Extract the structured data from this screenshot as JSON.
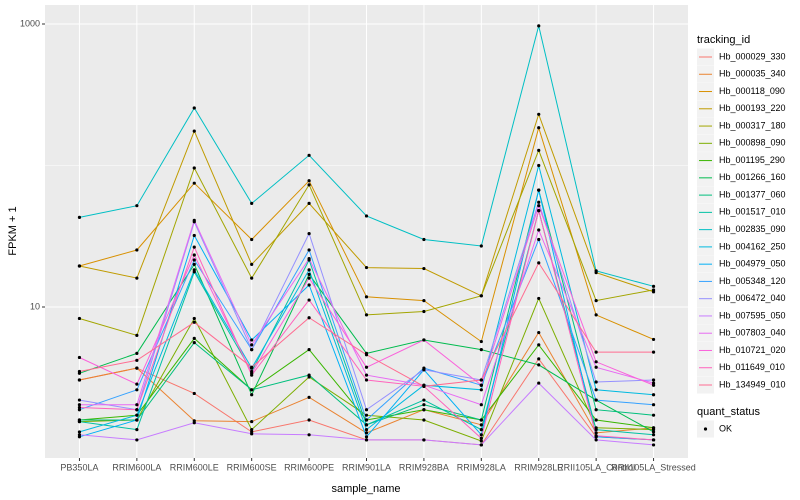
{
  "chart_data": {
    "type": "line",
    "x_label": "sample_name",
    "y_label": "FPKM + 1",
    "categories": [
      "PB350LA",
      "RRIM600LA",
      "RRIM600LE",
      "RRIM600SE",
      "RRIM600PE",
      "RRIM901LA",
      "RRIM928BA",
      "RRIM928LA",
      "RRIM928LE",
      "RRII105LA_Control",
      "RRII105LA_Stressed"
    ],
    "log_y": true,
    "grid": true,
    "ylim": [
      0.857,
      1362
    ],
    "yticks": [
      10,
      1000
    ],
    "legend_title": "tracking_id",
    "legend_position": "right",
    "point_legend": {
      "title": "quant_status",
      "labels": [
        "OK"
      ]
    },
    "series": [
      {
        "name": "Hb_000029_330",
        "color": "#F8766D",
        "values": [
          3.05,
          3.7,
          2.45,
          1.31,
          1.59,
          1.15,
          1.15,
          1.06,
          4.3,
          1.21,
          1.15
        ]
      },
      {
        "name": "Hb_000035_340",
        "color": "#EA8331",
        "values": [
          3.05,
          3.7,
          1.57,
          1.55,
          2.3,
          1.29,
          1.88,
          1.47,
          6.6,
          1.29,
          1.4
        ]
      },
      {
        "name": "Hb_000118_090",
        "color": "#D89000",
        "values": [
          19.5,
          25.3,
          75,
          30,
          78,
          11.8,
          11.1,
          5.7,
          185,
          8.8,
          5.9
        ]
      },
      {
        "name": "Hb_000193_220",
        "color": "#C09B00",
        "values": [
          19.5,
          16,
          175,
          20,
          54,
          19,
          18.7,
          12,
          230,
          17.5,
          12.8
        ]
      },
      {
        "name": "Hb_000317_180",
        "color": "#A3A500",
        "values": [
          8.3,
          6.3,
          96,
          16,
          73,
          8.8,
          9.3,
          12,
          128,
          11.1,
          13.2
        ]
      },
      {
        "name": "Hb_000898_090",
        "color": "#7CAE00",
        "values": [
          1.55,
          1.59,
          8.3,
          1.36,
          3.2,
          1.72,
          1.59,
          1.13,
          11.5,
          1.4,
          1.36
        ]
      },
      {
        "name": "Hb_001195_290",
        "color": "#39B600",
        "values": [
          1.59,
          1.72,
          6,
          2.6,
          5,
          1.59,
          1.88,
          1.59,
          5.4,
          1.59,
          1.4
        ]
      },
      {
        "name": "Hb_001266_160",
        "color": "#00BB4E",
        "values": [
          3.4,
          4.7,
          20,
          2.4,
          17,
          4.7,
          5.85,
          5,
          3.9,
          2.2,
          1.31
        ]
      },
      {
        "name": "Hb_001377_060",
        "color": "#00BF7D",
        "values": [
          1.59,
          1.59,
          5.6,
          2.6,
          3.3,
          1.47,
          2.04,
          1.59,
          67,
          1.88,
          1.72
        ]
      },
      {
        "name": "Hb_001517_010",
        "color": "#00C1A3",
        "values": [
          1.55,
          1.36,
          17.7,
          3.5,
          21.5,
          1.47,
          2.2,
          1.36,
          48,
          1.36,
          1.25
        ]
      },
      {
        "name": "Hb_002835_090",
        "color": "#00BFC4",
        "values": [
          43,
          52,
          255,
          54,
          118,
          44,
          30,
          27,
          970,
          18,
          14
        ]
      },
      {
        "name": "Hb_004162_250",
        "color": "#00BAE0",
        "values": [
          1.31,
          1.72,
          18.3,
          3.7,
          18.3,
          1.36,
          2.8,
          2.6,
          100,
          2.6,
          2.4
        ]
      },
      {
        "name": "Hb_004979_050",
        "color": "#00B0F6",
        "values": [
          1.21,
          1.59,
          32,
          5.85,
          14.3,
          1.21,
          3.6,
          1.25,
          67,
          1.21,
          1.15
        ]
      },
      {
        "name": "Hb_005348_120",
        "color": "#35A2FF",
        "values": [
          1.88,
          2.6,
          21.5,
          5,
          25.3,
          1.59,
          3.7,
          2.8,
          30,
          2.2,
          2.04
        ]
      },
      {
        "name": "Hb_006472_040",
        "color": "#9590FF",
        "values": [
          2.2,
          1.88,
          40,
          5,
          33,
          1.88,
          3.6,
          3.05,
          55,
          2.95,
          3.05
        ]
      },
      {
        "name": "Hb_007595_050",
        "color": "#C77CFF",
        "values": [
          1.25,
          1.15,
          1.52,
          1.27,
          1.25,
          1.15,
          1.15,
          1.06,
          2.9,
          1.15,
          1.06
        ]
      },
      {
        "name": "Hb_007803_040",
        "color": "#E76BF3",
        "values": [
          2.04,
          2.04,
          41,
          5.4,
          22,
          3.3,
          2.8,
          2.04,
          35,
          3.75,
          2.9
        ]
      },
      {
        "name": "Hb_010721_020",
        "color": "#FA62DB",
        "values": [
          4.4,
          2.85,
          23.3,
          3.4,
          16,
          3.75,
          5.85,
          2.8,
          52,
          4.1,
          2.8
        ]
      },
      {
        "name": "Hb_011649_010",
        "color": "#FF62BC",
        "values": [
          1.95,
          1.88,
          26.5,
          3.3,
          11.2,
          3.05,
          2.75,
          1.18,
          48,
          1.23,
          1.15
        ]
      },
      {
        "name": "Hb_134949_010",
        "color": "#FF6C91",
        "values": [
          3.5,
          4.2,
          7.8,
          3.75,
          8.4,
          4.6,
          2.75,
          3.05,
          20.5,
          4.8,
          4.8
        ]
      }
    ]
  }
}
